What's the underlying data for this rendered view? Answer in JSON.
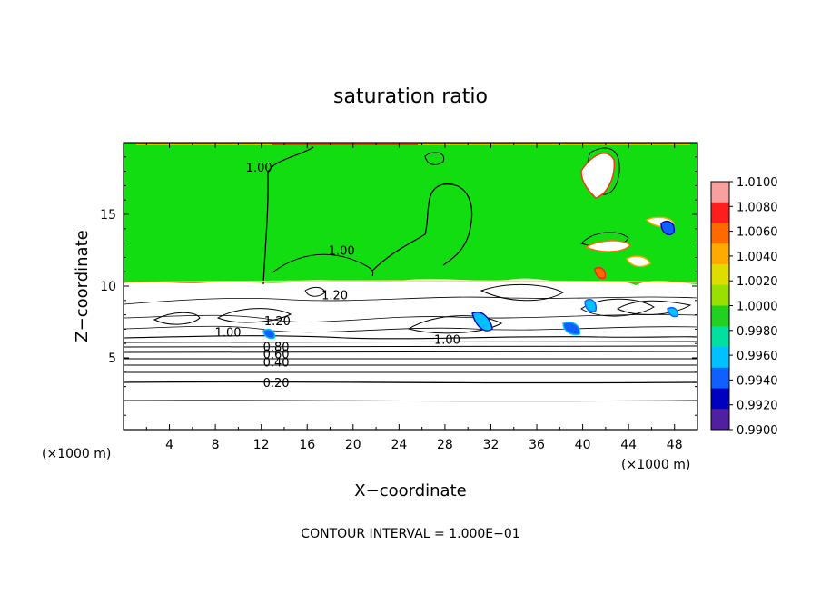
{
  "chart_data": {
    "type": "heatmap",
    "title": "saturation ratio",
    "xlabel": "X−coordinate",
    "ylabel": "Z−coordinate",
    "x_unit": "(×1000 m)",
    "y_unit": "(×1000 m)",
    "x_range": [
      0,
      50
    ],
    "y_range": [
      0,
      20
    ],
    "x_ticks": [
      4,
      8,
      12,
      16,
      20,
      24,
      28,
      32,
      36,
      40,
      44,
      48
    ],
    "y_ticks": [
      5,
      10,
      15
    ],
    "footer": "CONTOUR INTERVAL = 1.000E−01",
    "colorbar": {
      "range": [
        0.99,
        1.01
      ],
      "labels": [
        "1.0100",
        "1.0080",
        "1.0060",
        "1.0040",
        "1.0020",
        "1.0000",
        "0.9980",
        "0.9960",
        "0.9940",
        "0.9920",
        "0.9900"
      ],
      "colors": [
        "#f8a0a0",
        "#ff1e1e",
        "#ff6a00",
        "#ffaa00",
        "#dddd00",
        "#99e000",
        "#22d022",
        "#00e0a0",
        "#00c0ff",
        "#1060ff",
        "#0000c0",
        "#5020a0"
      ]
    },
    "fill_color": "#11dd11",
    "contour_labels": [
      {
        "text": "1.00",
        "x": 11.8,
        "y": 18.3
      },
      {
        "text": "1.00",
        "x": 19.0,
        "y": 12.5
      },
      {
        "text": "1.20",
        "x": 18.4,
        "y": 9.4
      },
      {
        "text": "1.00",
        "x": 9.1,
        "y": 6.8
      },
      {
        "text": "1.20",
        "x": 13.4,
        "y": 7.6
      },
      {
        "text": "1.00",
        "x": 28.2,
        "y": 6.3
      },
      {
        "text": "0.80",
        "x": 13.3,
        "y": 5.8
      },
      {
        "text": "0.60",
        "x": 13.3,
        "y": 5.3
      },
      {
        "text": "0.40",
        "x": 13.3,
        "y": 4.7
      },
      {
        "text": "0.20",
        "x": 13.3,
        "y": 3.3
      }
    ]
  }
}
